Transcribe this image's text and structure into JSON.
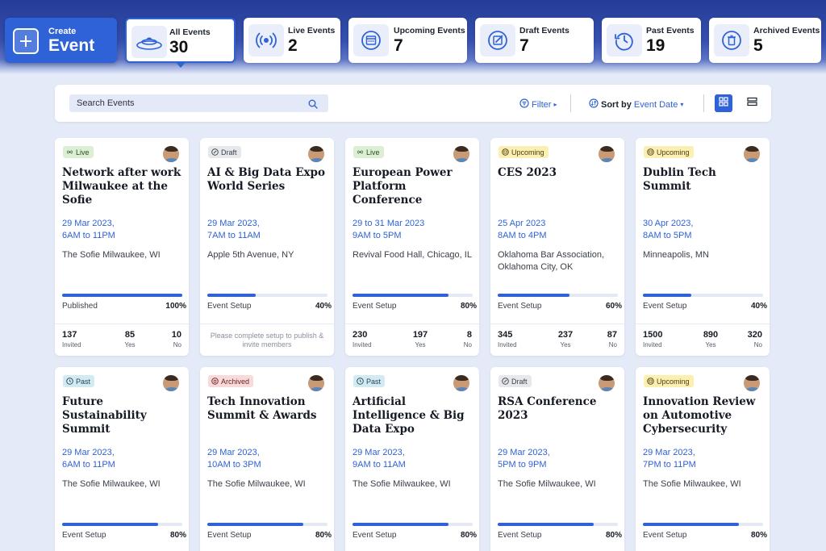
{
  "create": {
    "line1": "Create",
    "line2": "Event"
  },
  "stats": [
    {
      "label": "All Events",
      "count": "30",
      "icon": "all-events-icon",
      "active": true
    },
    {
      "label": "Live Events",
      "count": "2",
      "icon": "broadcast-icon"
    },
    {
      "label": "Upcoming Events",
      "count": "7",
      "icon": "calendar-icon"
    },
    {
      "label": "Draft Events",
      "count": "7",
      "icon": "edit-icon"
    },
    {
      "label": "Past Events",
      "count": "19",
      "icon": "history-icon"
    },
    {
      "label": "Archived Events",
      "count": "5",
      "icon": "trash-icon"
    }
  ],
  "toolbar": {
    "search_placeholder": "Search Events",
    "filter_label": "Filter",
    "sort_prefix": "Sort by",
    "sort_value": "Event Date"
  },
  "events": [
    {
      "status": "Live",
      "status_type": "live",
      "title": "Network after work Milwaukee at the Sofie",
      "date": "29 Mar 2023,",
      "time": "6AM to 11PM",
      "location": "The Sofie Milwaukee, WI",
      "progress_label": "Published",
      "progress": "100%",
      "invited": "137",
      "yes": "85",
      "no": "10"
    },
    {
      "status": "Draft",
      "status_type": "draft",
      "title": "AI & Big Data Expo World Series",
      "date": "29 Mar 2023,",
      "time": "7AM to 11AM",
      "location": "Apple 5th Avenue, NY",
      "progress_label": "Event Setup",
      "progress": "40%",
      "note": "Please complete setup to publish & invite members"
    },
    {
      "status": "Live",
      "status_type": "live",
      "title": "European Power Platform Conference",
      "date": "29 to 31 Mar 2023",
      "time": "9AM to 5PM",
      "location": "Revival Food Hall, Chicago, IL",
      "progress_label": "Event Setup",
      "progress": "80%",
      "invited": "230",
      "yes": "197",
      "no": "8"
    },
    {
      "status": "Upcoming",
      "status_type": "upcoming",
      "title": "CES 2023",
      "date": "25 Apr 2023",
      "time": "8AM to 4PM",
      "location": "Oklahoma Bar Association, Oklahoma City, OK",
      "progress_label": "Event Setup",
      "progress": "60%",
      "invited": "345",
      "yes": "237",
      "no": "87"
    },
    {
      "status": "Upcoming",
      "status_type": "upcoming",
      "title": "Dublin Tech Summit",
      "date": "30 Apr 2023,",
      "time": "8AM to 5PM",
      "location": "Minneapolis, MN",
      "progress_label": "Event Setup",
      "progress": "40%",
      "invited": "1500",
      "yes": "890",
      "no": "320"
    },
    {
      "status": "Past",
      "status_type": "past",
      "title": "Future Sustainability Summit",
      "date": "29 Mar 2023,",
      "time": "6AM to 11PM",
      "location": "The Sofie Milwaukee, WI",
      "progress_label": "Event Setup",
      "progress": "80%"
    },
    {
      "status": "Archived",
      "status_type": "archived",
      "title": "Tech Innovation Summit & Awards",
      "date": "29 Mar 2023,",
      "time": "10AM to 3PM",
      "location": "The Sofie Milwaukee, WI",
      "progress_label": "Event Setup",
      "progress": "80%"
    },
    {
      "status": "Past",
      "status_type": "past",
      "title": "Artificial Intelligence & Big Data Expo",
      "date": "29 Mar 2023,",
      "time": "9AM to 11AM",
      "location": "The Sofie Milwaukee, WI",
      "progress_label": "Event Setup",
      "progress": "80%"
    },
    {
      "status": "Draft",
      "status_type": "draft",
      "title": "RSA Conference 2023",
      "date": "29 Mar 2023,",
      "time": "5PM to 9PM",
      "location": "The Sofie Milwaukee, WI",
      "progress_label": "Event Setup",
      "progress": "80%"
    },
    {
      "status": "Upcoming",
      "status_type": "upcoming",
      "title": "Innovation Review on Automotive Cybersecurity",
      "date": "29 Mar 2023,",
      "time": "7PM to 11PM",
      "location": "The Sofie Milwaukee, WI",
      "progress_label": "Event Setup",
      "progress": "80%"
    }
  ],
  "labels": {
    "invited": "Invited",
    "yes": "Yes",
    "no": "No"
  },
  "colors": {
    "accent": "#2f62d6",
    "banner": "#2a45a3",
    "background": "#e4eaf8"
  }
}
